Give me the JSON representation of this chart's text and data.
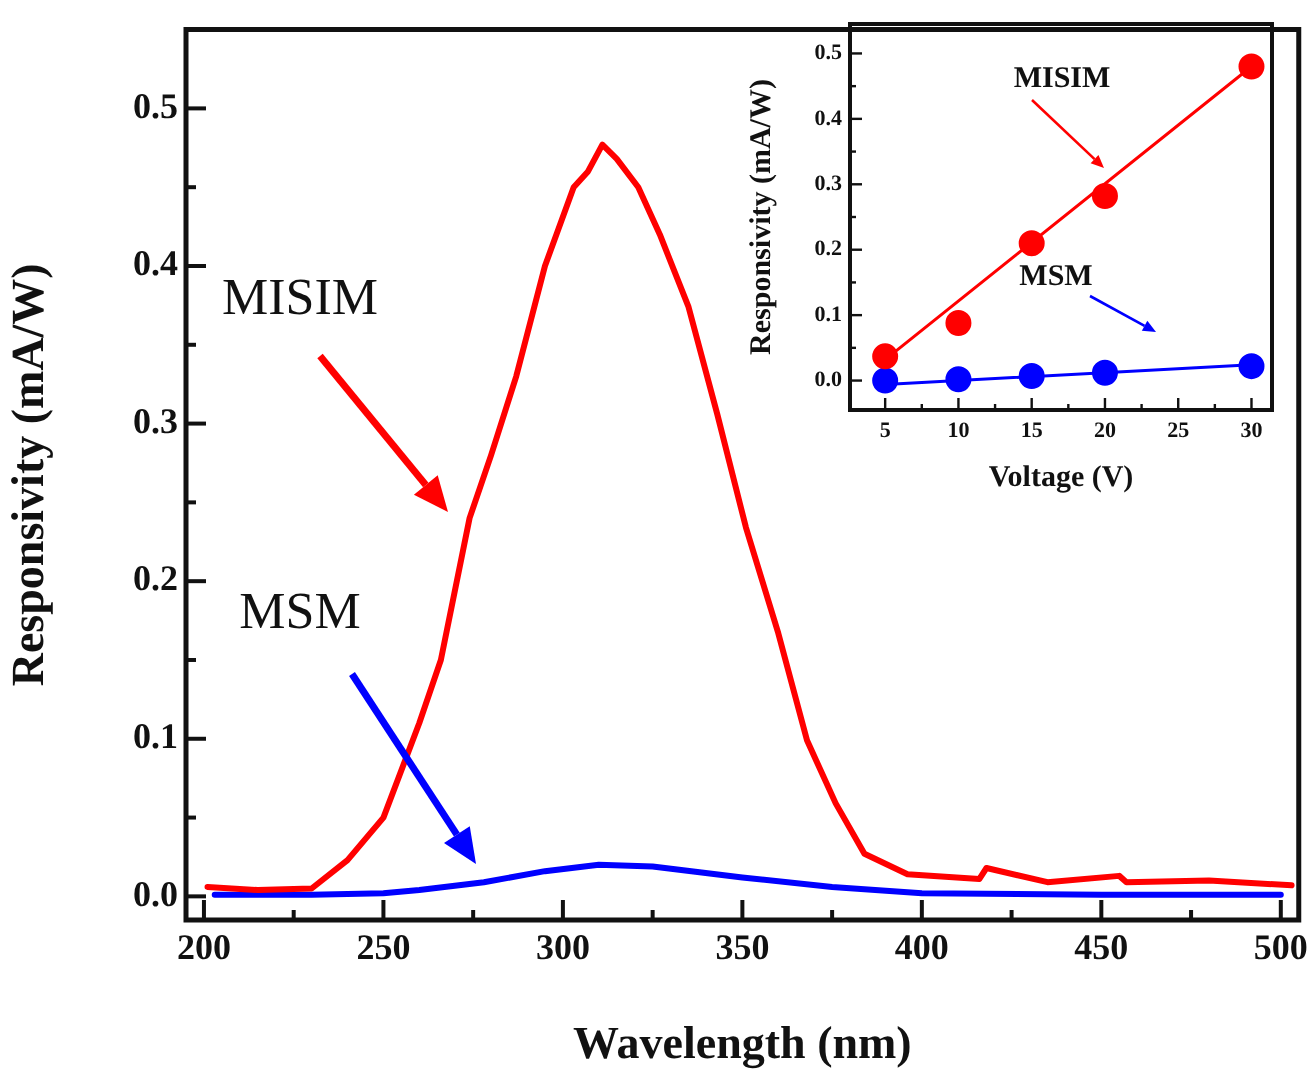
{
  "chart_data": [
    {
      "type": "line",
      "xlabel": "Wavelength (nm)",
      "ylabel": "Responsivity (mA/W)",
      "marker": "none",
      "annotations": [
        "MISIM",
        "MSM"
      ],
      "xlim": [
        195,
        505
      ],
      "ylim": [
        -0.015,
        0.55
      ],
      "xticks": [
        200,
        {
          "value": 225,
          "label": null
        },
        250,
        {
          "value": 275,
          "label": null
        },
        300,
        {
          "value": 325,
          "label": null
        },
        350,
        {
          "value": 375,
          "label": null
        },
        400,
        {
          "value": 425,
          "label": null
        },
        450,
        {
          "value": 475,
          "label": null
        },
        500
      ],
      "yticks": [
        {
          "value": 0,
          "label": "0.0"
        },
        {
          "value": 0.05,
          "label": null
        },
        {
          "value": 0.1,
          "label": "0.1"
        },
        {
          "value": 0.15,
          "label": null
        },
        {
          "value": 0.2,
          "label": "0.2"
        },
        {
          "value": 0.25,
          "label": null
        },
        {
          "value": 0.3,
          "label": "0.3"
        },
        {
          "value": 0.35,
          "label": null
        },
        {
          "value": 0.4,
          "label": "0.4"
        },
        {
          "value": 0.45,
          "label": null
        },
        {
          "value": 0.5,
          "label": "0.5"
        }
      ],
      "series": [
        {
          "color": "#ff0000",
          "x": [
            201,
            215,
            230,
            240,
            250,
            260,
            266,
            274,
            280,
            287,
            295,
            303,
            307,
            311,
            315,
            321,
            327,
            335,
            343,
            351,
            360,
            368,
            376,
            384,
            396,
            416,
            418,
            435,
            455,
            457,
            480,
            503
          ],
          "values": [
            0.006,
            0.004,
            0.005,
            0.023,
            0.05,
            0.11,
            0.15,
            0.24,
            0.28,
            0.33,
            0.4,
            0.45,
            0.46,
            0.477,
            0.468,
            0.45,
            0.42,
            0.374,
            0.306,
            0.234,
            0.167,
            0.099,
            0.059,
            0.027,
            0.014,
            0.011,
            0.018,
            0.009,
            0.013,
            0.009,
            0.01,
            0.007
          ]
        },
        {
          "color": "#0000ff",
          "x": [
            203,
            230,
            250,
            260,
            278,
            295,
            310,
            325,
            350,
            375,
            400,
            450,
            500
          ],
          "values": [
            0.001,
            0.001,
            0.002,
            0.004,
            0.009,
            0.016,
            0.02,
            0.019,
            0.012,
            0.006,
            0.002,
            0.001,
            0.001
          ]
        }
      ]
    },
    {
      "type": "scatter",
      "xlabel": "Voltage (V)",
      "ylabel": "Responsivity (mA/W)",
      "annotations": [
        "MISIM",
        "MSM"
      ],
      "xlim": [
        2.6,
        31.4
      ],
      "ylim": [
        -0.045,
        0.545
      ],
      "xticks": [
        5,
        {
          "value": 7.5,
          "label": null
        },
        10,
        {
          "value": 12.5,
          "label": null
        },
        15,
        {
          "value": 17.5,
          "label": null
        },
        20,
        {
          "value": 22.5,
          "label": null
        },
        25,
        {
          "value": 27.5,
          "label": null
        },
        30
      ],
      "yticks": [
        {
          "value": 0,
          "label": "0.0"
        },
        {
          "value": 0.05,
          "label": null
        },
        {
          "value": 0.1,
          "label": "0.1"
        },
        {
          "value": 0.15,
          "label": null
        },
        {
          "value": 0.2,
          "label": "0.2"
        },
        {
          "value": 0.25,
          "label": null
        },
        {
          "value": 0.3,
          "label": "0.3"
        },
        {
          "value": 0.35,
          "label": null
        },
        {
          "value": 0.4,
          "label": "0.4"
        },
        {
          "value": 0.45,
          "label": null
        },
        {
          "value": 0.5,
          "label": "0.5"
        }
      ],
      "series": [
        {
          "type": "line",
          "marker": "none",
          "color": "#ff0000",
          "x": [
            5,
            30
          ],
          "values": [
            0.032,
            0.48
          ]
        },
        {
          "type": "line",
          "marker": "none",
          "color": "#0000ff",
          "x": [
            5,
            30
          ],
          "values": [
            -0.006,
            0.024
          ]
        },
        {
          "marker": "circle",
          "color": "#ff0000",
          "x": [
            5,
            10,
            15,
            20,
            30
          ],
          "values": [
            0.037,
            0.088,
            0.21,
            0.282,
            0.48
          ]
        },
        {
          "marker": "circle",
          "color": "#0000ff",
          "x": [
            5,
            10,
            15,
            20,
            30
          ],
          "values": [
            0.0,
            0.002,
            0.007,
            0.012,
            0.022
          ]
        }
      ]
    }
  ]
}
